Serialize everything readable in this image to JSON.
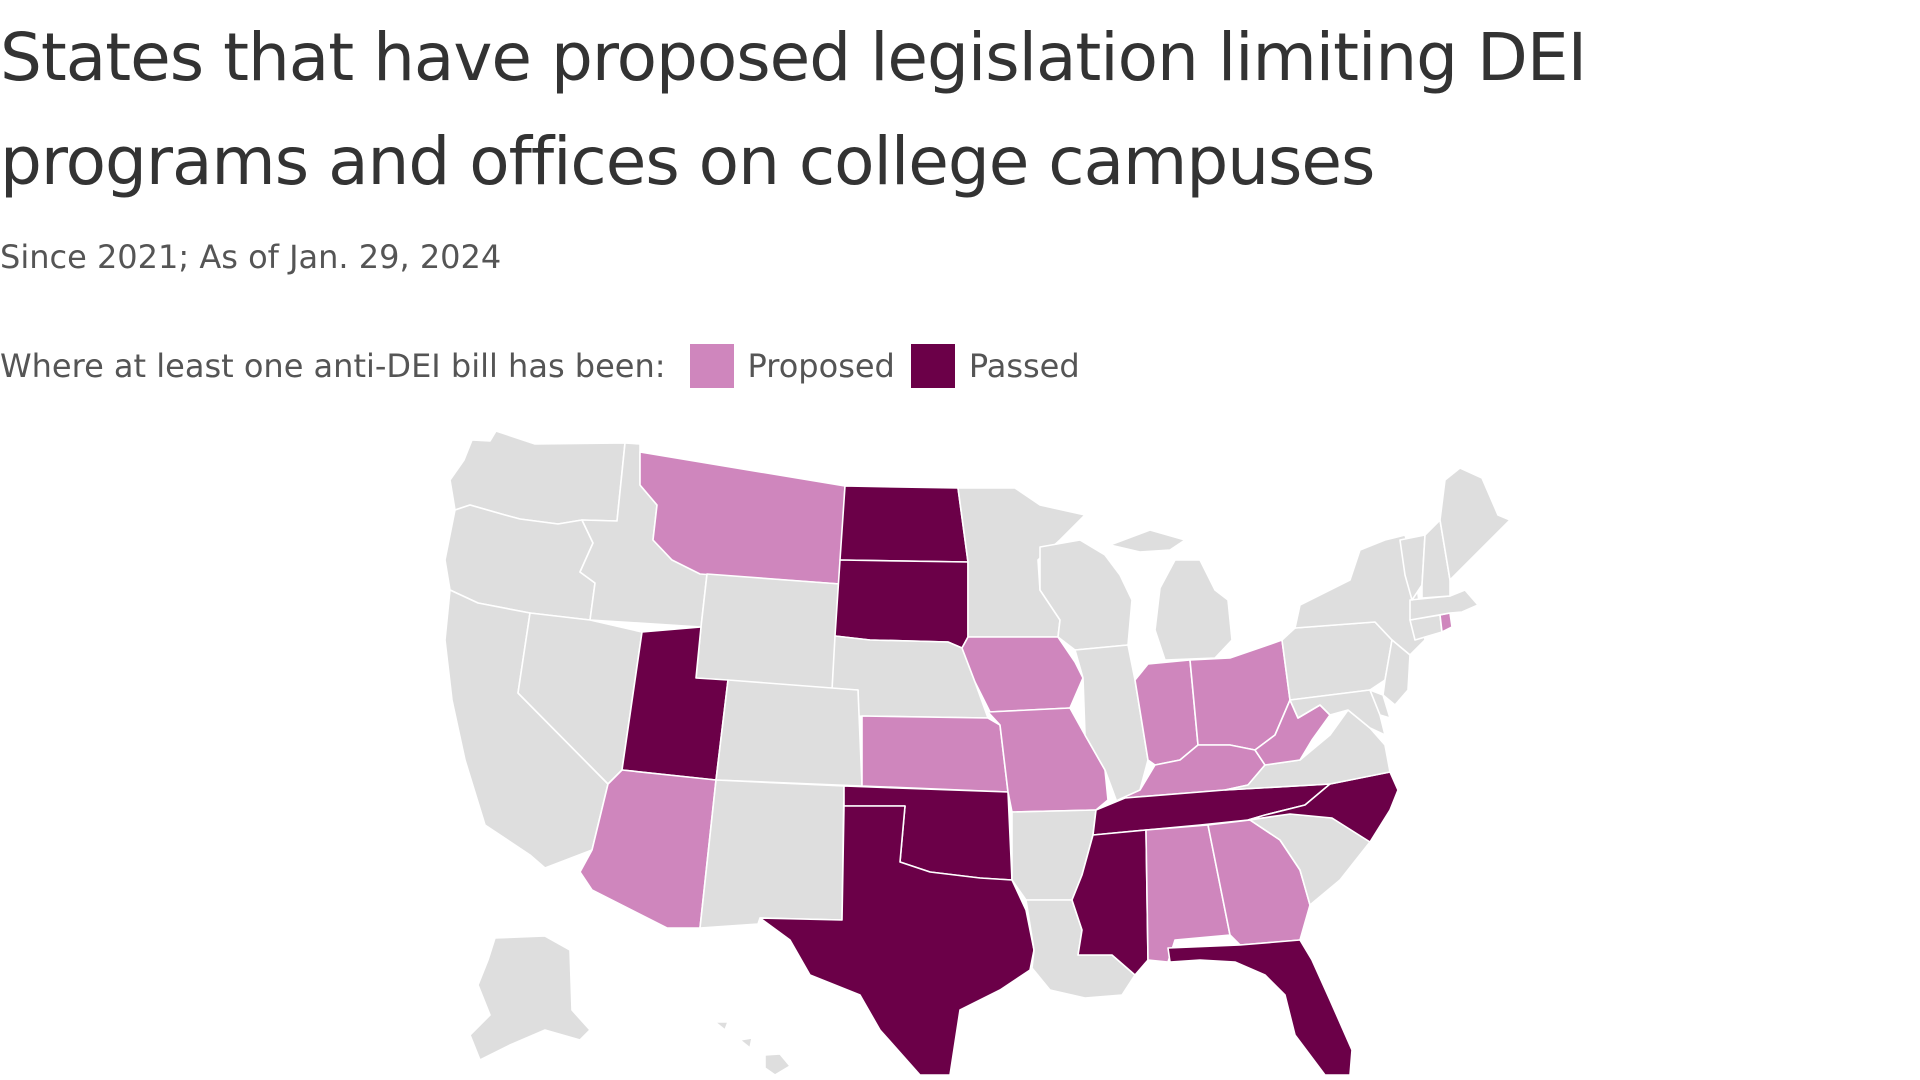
{
  "title": "States that have proposed legislation limiting DEI programs and offices on college campuses",
  "subtitle": "Since 2021; As of Jan. 29, 2024",
  "legend": {
    "lead": "Where at least one anti-DEI bill has been:",
    "items": [
      {
        "label": "Proposed",
        "color": "#cf86bd"
      },
      {
        "label": "Passed",
        "color": "#6b0048"
      }
    ]
  },
  "colors": {
    "none": "#dedede",
    "proposed": "#cf86bd",
    "passed": "#6b0048"
  },
  "states": {
    "WA": "none",
    "OR": "none",
    "CA": "none",
    "NV": "none",
    "ID": "none",
    "MT": "proposed",
    "WY": "none",
    "UT": "passed",
    "AZ": "proposed",
    "CO": "none",
    "NM": "none",
    "ND": "passed",
    "SD": "passed",
    "NE": "none",
    "KS": "proposed",
    "OK": "passed",
    "TX": "passed",
    "MN": "none",
    "IA": "proposed",
    "MO": "proposed",
    "AR": "none",
    "LA": "none",
    "WI": "none",
    "IL": "none",
    "MI": "none",
    "IN": "proposed",
    "OH": "proposed",
    "KY": "proposed",
    "TN": "passed",
    "MS": "passed",
    "AL": "proposed",
    "GA": "proposed",
    "FL": "passed",
    "SC": "none",
    "NC": "passed",
    "VA": "none",
    "WV": "proposed",
    "PA": "none",
    "NY": "none",
    "VT": "none",
    "NH": "none",
    "ME": "none",
    "MA": "none",
    "RI": "proposed",
    "CT": "none",
    "NJ": "none",
    "DE": "none",
    "MD": "none",
    "AK": "none",
    "HI": "none"
  }
}
